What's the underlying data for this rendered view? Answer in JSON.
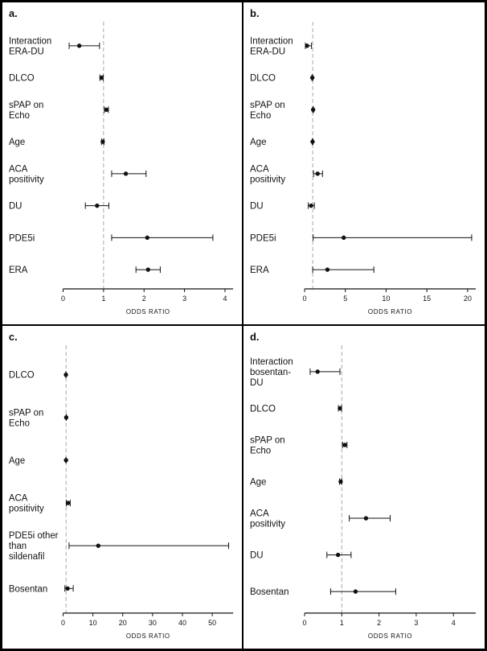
{
  "figure": {
    "background": "#ffffff",
    "border_color": "#000000",
    "marker_color": "#111111",
    "error_bar_color": "#111111",
    "reference_line_color": "#a8a8a8"
  },
  "chart_data": [
    {
      "type": "forest",
      "panel_label": "a.",
      "xlabel": "ODDS RATIO",
      "xlim": [
        0,
        4.2
      ],
      "xticks": [
        0,
        1,
        2,
        3,
        4
      ],
      "ref_line": 1,
      "grid": false,
      "rows": [
        {
          "label": "Interaction ERA-DU",
          "label_lines": [
            "Interaction",
            "ERA-DU"
          ],
          "or": 0.4,
          "lo": 0.15,
          "hi": 0.9
        },
        {
          "label": "DLCO",
          "label_lines": [
            "DLCO"
          ],
          "or": 0.95,
          "lo": 0.91,
          "hi": 0.99
        },
        {
          "label": "sPAP on Echo",
          "label_lines": [
            "sPAP on",
            "Echo"
          ],
          "or": 1.07,
          "lo": 1.02,
          "hi": 1.12
        },
        {
          "label": "Age",
          "label_lines": [
            "Age"
          ],
          "or": 0.98,
          "lo": 0.95,
          "hi": 1.01
        },
        {
          "label": "ACA positivity",
          "label_lines": [
            "ACA",
            "positivity"
          ],
          "or": 1.55,
          "lo": 1.2,
          "hi": 2.05
        },
        {
          "label": "DU",
          "label_lines": [
            "DU"
          ],
          "or": 0.84,
          "lo": 0.55,
          "hi": 1.13
        },
        {
          "label": "PDE5i",
          "label_lines": [
            "PDE5i"
          ],
          "or": 2.08,
          "lo": 1.2,
          "hi": 3.7
        },
        {
          "label": "ERA",
          "label_lines": [
            "ERA"
          ],
          "or": 2.1,
          "lo": 1.8,
          "hi": 2.4
        }
      ]
    },
    {
      "type": "forest",
      "panel_label": "b.",
      "xlabel": "ODDS RATIO",
      "xlim": [
        0,
        21
      ],
      "xticks": [
        0,
        5,
        10,
        15,
        20
      ],
      "ref_line": 1,
      "grid": false,
      "rows": [
        {
          "label": "Interaction ERA-DU",
          "label_lines": [
            "Interaction",
            "ERA-DU"
          ],
          "or": 0.3,
          "lo": 0.1,
          "hi": 0.85
        },
        {
          "label": "DLCO",
          "label_lines": [
            "DLCO"
          ],
          "or": 0.95,
          "lo": 0.9,
          "hi": 1.0
        },
        {
          "label": "sPAP on Echo",
          "label_lines": [
            "sPAP on",
            "Echo"
          ],
          "or": 1.05,
          "lo": 1.0,
          "hi": 1.1
        },
        {
          "label": "Age",
          "label_lines": [
            "Age"
          ],
          "or": 0.98,
          "lo": 0.94,
          "hi": 1.02
        },
        {
          "label": "ACA positivity",
          "label_lines": [
            "ACA",
            "positivity"
          ],
          "or": 1.6,
          "lo": 1.1,
          "hi": 2.2
        },
        {
          "label": "DU",
          "label_lines": [
            "DU"
          ],
          "or": 0.8,
          "lo": 0.45,
          "hi": 1.2
        },
        {
          "label": "PDE5i",
          "label_lines": [
            "PDE5i"
          ],
          "or": 4.8,
          "lo": 1.05,
          "hi": 20.5
        },
        {
          "label": "ERA",
          "label_lines": [
            "ERA"
          ],
          "or": 2.8,
          "lo": 1.0,
          "hi": 8.5
        }
      ]
    },
    {
      "type": "forest",
      "panel_label": "c.",
      "xlabel": "ODDS RATIO",
      "xlim": [
        0,
        57
      ],
      "xticks": [
        0,
        10,
        20,
        30,
        40,
        50
      ],
      "ref_line": 1,
      "grid": false,
      "rows": [
        {
          "label": "DLCO",
          "label_lines": [
            "DLCO"
          ],
          "or": 0.95,
          "lo": 0.9,
          "hi": 1.0
        },
        {
          "label": "sPAP on Echo",
          "label_lines": [
            "sPAP on",
            "Echo"
          ],
          "or": 1.05,
          "lo": 1.0,
          "hi": 1.1
        },
        {
          "label": "Age",
          "label_lines": [
            "Age"
          ],
          "or": 0.98,
          "lo": 0.95,
          "hi": 1.0
        },
        {
          "label": "ACA positivity",
          "label_lines": [
            "ACA",
            "positivity"
          ],
          "or": 1.7,
          "lo": 1.1,
          "hi": 2.4
        },
        {
          "label": "PDE5i other than sildenafil",
          "label_lines": [
            "PDE5i other",
            "than",
            "sildenafil"
          ],
          "or": 11.8,
          "lo": 2.0,
          "hi": 55.5
        },
        {
          "label": "Bosentan",
          "label_lines": [
            "Bosentan"
          ],
          "or": 1.5,
          "lo": 0.6,
          "hi": 3.4
        }
      ]
    },
    {
      "type": "forest",
      "panel_label": "d.",
      "xlabel": "ODDS RATIO",
      "xlim": [
        0,
        4.6
      ],
      "xticks": [
        0,
        1,
        2,
        3,
        4
      ],
      "ref_line": 1,
      "grid": false,
      "rows": [
        {
          "label": "Interaction bosentan-DU",
          "label_lines": [
            "Interaction",
            "bosentan-",
            "DU"
          ],
          "or": 0.35,
          "lo": 0.15,
          "hi": 0.95
        },
        {
          "label": "DLCO",
          "label_lines": [
            "DLCO"
          ],
          "or": 0.95,
          "lo": 0.91,
          "hi": 0.99
        },
        {
          "label": "sPAP on Echo",
          "label_lines": [
            "sPAP on",
            "Echo"
          ],
          "or": 1.08,
          "lo": 1.02,
          "hi": 1.14
        },
        {
          "label": "Age",
          "label_lines": [
            "Age"
          ],
          "or": 0.97,
          "lo": 0.94,
          "hi": 1.0
        },
        {
          "label": "ACA positivity",
          "label_lines": [
            "ACA",
            "positivity"
          ],
          "or": 1.65,
          "lo": 1.2,
          "hi": 2.3
        },
        {
          "label": "DU",
          "label_lines": [
            "DU"
          ],
          "or": 0.9,
          "lo": 0.6,
          "hi": 1.25
        },
        {
          "label": "Bosentan",
          "label_lines": [
            "Bosentan"
          ],
          "or": 1.37,
          "lo": 0.7,
          "hi": 2.45
        }
      ]
    }
  ]
}
